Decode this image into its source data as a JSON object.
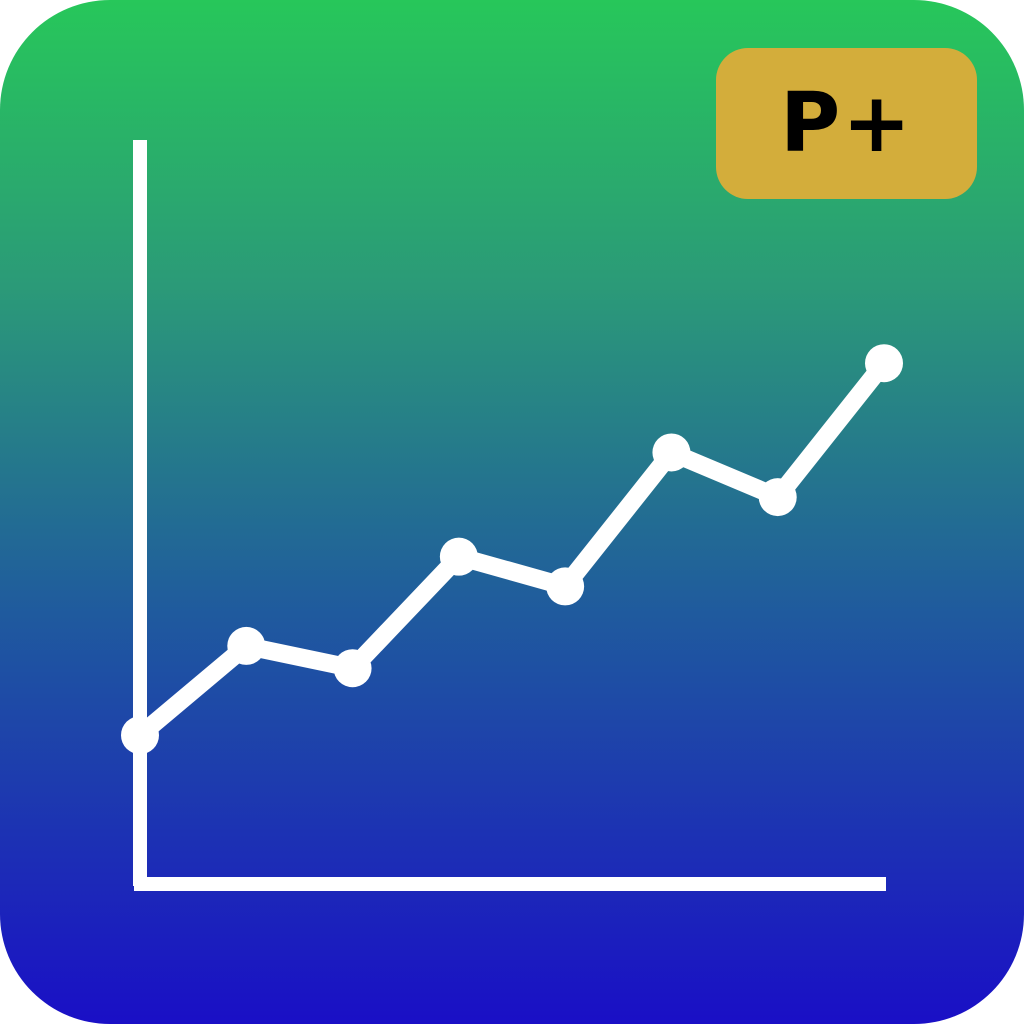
{
  "badge": {
    "label": "P+",
    "color": "#d3ad3b"
  },
  "background": {
    "gradient_top": "#27c75a",
    "gradient_bottom": "#1a0fc6"
  },
  "chart_data": {
    "type": "line",
    "x": [
      0,
      1,
      2,
      3,
      4,
      5,
      6,
      7
    ],
    "values": [
      2,
      3.2,
      2.9,
      4.4,
      4.0,
      5.8,
      5.2,
      7.0
    ],
    "ylim": [
      0,
      10
    ],
    "line_color": "#ffffff",
    "markers": true,
    "grid": false
  }
}
